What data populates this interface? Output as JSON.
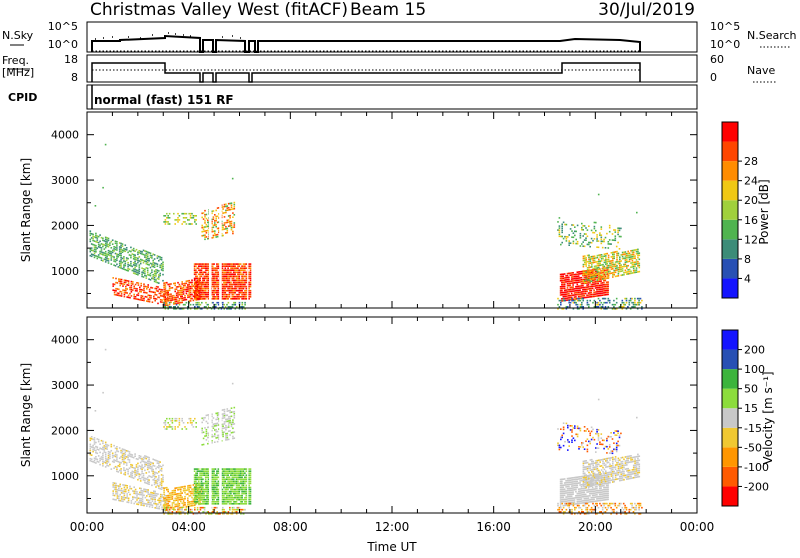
{
  "header": {
    "title": "Christmas Valley West (fitACF)",
    "beam": "Beam 15",
    "date": "30/Jul/2019"
  },
  "nsky_panel": {
    "left_label": "N.Sky",
    "right_label": "N.Search",
    "left_ticks": [
      "10^5",
      "10^0"
    ],
    "right_ticks": [
      "10^5",
      "10^0"
    ]
  },
  "freq_panel": {
    "left_label_1": "Freq.",
    "left_label_2": "[MHz]",
    "right_label": "Nave",
    "left_ticks": [
      "18",
      "8"
    ],
    "right_ticks": [
      "60",
      "0"
    ]
  },
  "cpid": {
    "label": "CPID",
    "value": "normal (fast) 151 RF"
  },
  "colors": {
    "power_scale": [
      "#1414ff",
      "#2850b4",
      "#3c8c78",
      "#50b450",
      "#a0d03c",
      "#f0c814",
      "#ff8c00",
      "#ff4600",
      "#ff0000"
    ],
    "velocity_scale": [
      "#ff0000",
      "#ff5a00",
      "#ff9600",
      "#f0c832",
      "#c8c8c8",
      "#8cdc3c",
      "#3cb43c",
      "#2850b4",
      "#1414ff"
    ]
  },
  "chart_data": [
    {
      "type": "heatmap",
      "name": "power",
      "ylabel": "Slant Range [km]",
      "xlabel": "",
      "yticks": [
        "1000",
        "2000",
        "3000",
        "4000"
      ],
      "yrange": [
        180,
        4500
      ],
      "xrange_hours": [
        0,
        24
      ],
      "colorbar_label": "Power [dB]",
      "colorbar_ticks": [
        "4",
        "8",
        "12",
        "16",
        "20",
        "24",
        "28"
      ]
    },
    {
      "type": "heatmap",
      "name": "velocity",
      "ylabel": "Slant Range [km]",
      "xlabel": "Time UT",
      "yticks": [
        "1000",
        "2000",
        "3000",
        "4000"
      ],
      "yrange": [
        180,
        4500
      ],
      "xrange_hours": [
        0,
        24
      ],
      "xticks": [
        "00:00",
        "04:00",
        "08:00",
        "12:00",
        "16:00",
        "20:00",
        "00:00"
      ],
      "colorbar_label": "Velocity [m s⁻¹]",
      "colorbar_ticks": [
        "200",
        "100",
        "50",
        "15",
        "-15",
        "-50",
        "-100",
        "-200"
      ]
    }
  ]
}
